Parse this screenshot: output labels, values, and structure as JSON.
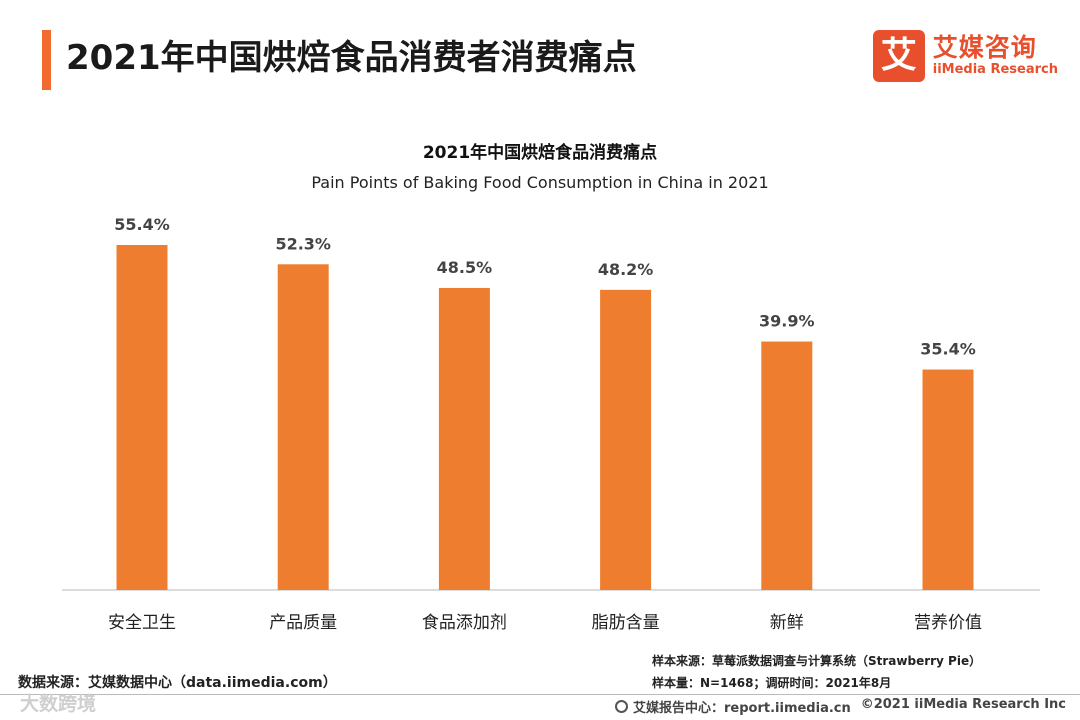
{
  "header": {
    "title": "2021年中国烘焙食品消费者消费痛点",
    "logo_mark": "艾",
    "logo_cn": "艾媒咨询",
    "logo_en": "iiMedia Research"
  },
  "chart_data": {
    "type": "bar",
    "title": "2021年中国烘焙食品消费痛点",
    "subtitle": "Pain Points of Baking Food Consumption in China in 2021",
    "categories": [
      "安全卫生",
      "产品质量",
      "食品添加剂",
      "脂肪含量",
      "新鲜",
      "营养价值"
    ],
    "values": [
      55.4,
      52.3,
      48.5,
      48.2,
      39.9,
      35.4
    ],
    "value_labels": [
      "55.4%",
      "52.3%",
      "48.5%",
      "48.2%",
      "39.9%",
      "35.4%"
    ],
    "ylim": [
      0,
      60
    ],
    "grid": false,
    "legend": "none",
    "bar_color": "#ef7d2f"
  },
  "footer": {
    "data_source": "数据来源：艾媒数据中心（data.iimedia.com）",
    "sample_source": "样本来源：草莓派数据调查与计算系统（Strawberry Pie）",
    "sample_size": "样本量：N=1468；调研时间：2021年8月",
    "watermark": "大数跨境",
    "report_center": "艾媒报告中心：report.iimedia.cn",
    "copyright": "©2021  iiMedia Research  Inc"
  }
}
